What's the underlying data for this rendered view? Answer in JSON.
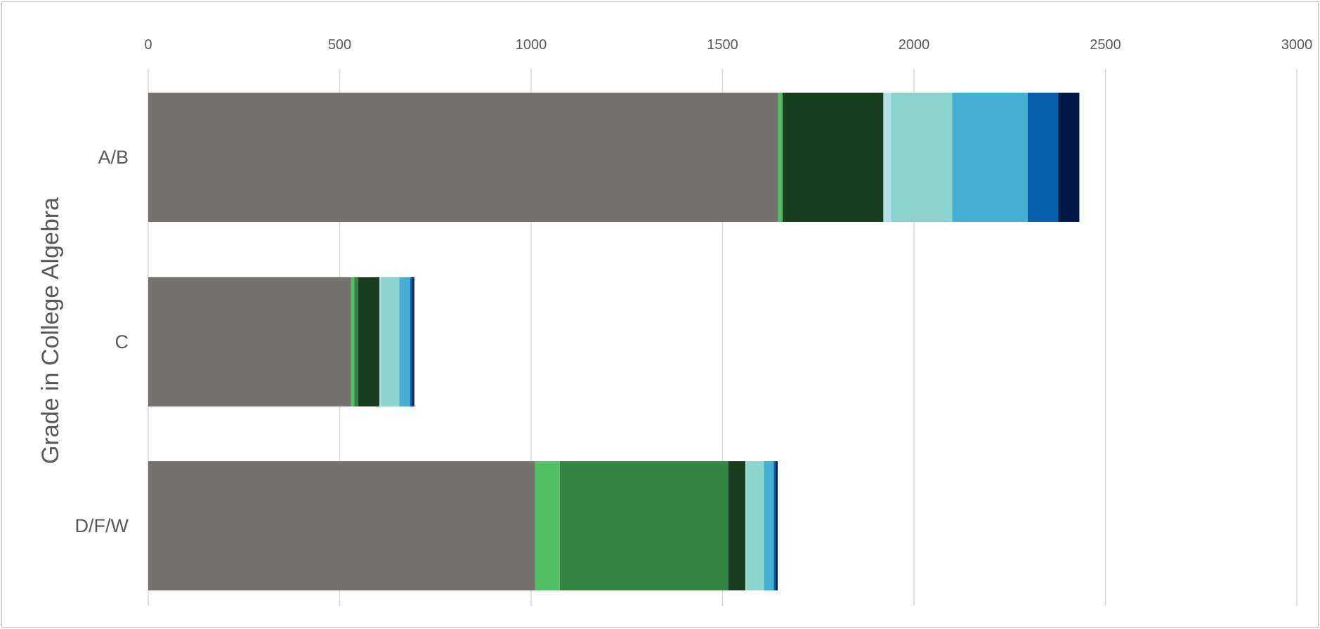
{
  "chart_data": {
    "type": "bar",
    "orientation": "horizontal",
    "stacked": true,
    "title": "",
    "xlabel": "",
    "ylabel": "Grade in College Algebra",
    "xlim": [
      0,
      3000
    ],
    "x_ticks": [
      0,
      500,
      1000,
      1500,
      2000,
      2500,
      3000
    ],
    "x_axis_position": "top",
    "grid": "vertical",
    "legend": "none",
    "categories": [
      "A/B",
      "C",
      "D/F/W"
    ],
    "series": [
      {
        "color": "#75716f",
        "values": [
          1645,
          530,
          1010
        ]
      },
      {
        "color": "#52bf63",
        "values": [
          12,
          8,
          65
        ]
      },
      {
        "color": "#348541",
        "values": [
          0,
          10,
          440
        ]
      },
      {
        "color": "#183d1f",
        "values": [
          263,
          56,
          45
        ]
      },
      {
        "color": "#b4dfe8",
        "values": [
          20,
          4,
          2
        ]
      },
      {
        "color": "#8dd4cf",
        "values": [
          160,
          48,
          46
        ]
      },
      {
        "color": "#45afd3",
        "values": [
          197,
          28,
          26
        ]
      },
      {
        "color": "#065eac",
        "values": [
          80,
          6,
          5
        ]
      },
      {
        "color": "#001848",
        "values": [
          55,
          5,
          5
        ]
      }
    ]
  }
}
